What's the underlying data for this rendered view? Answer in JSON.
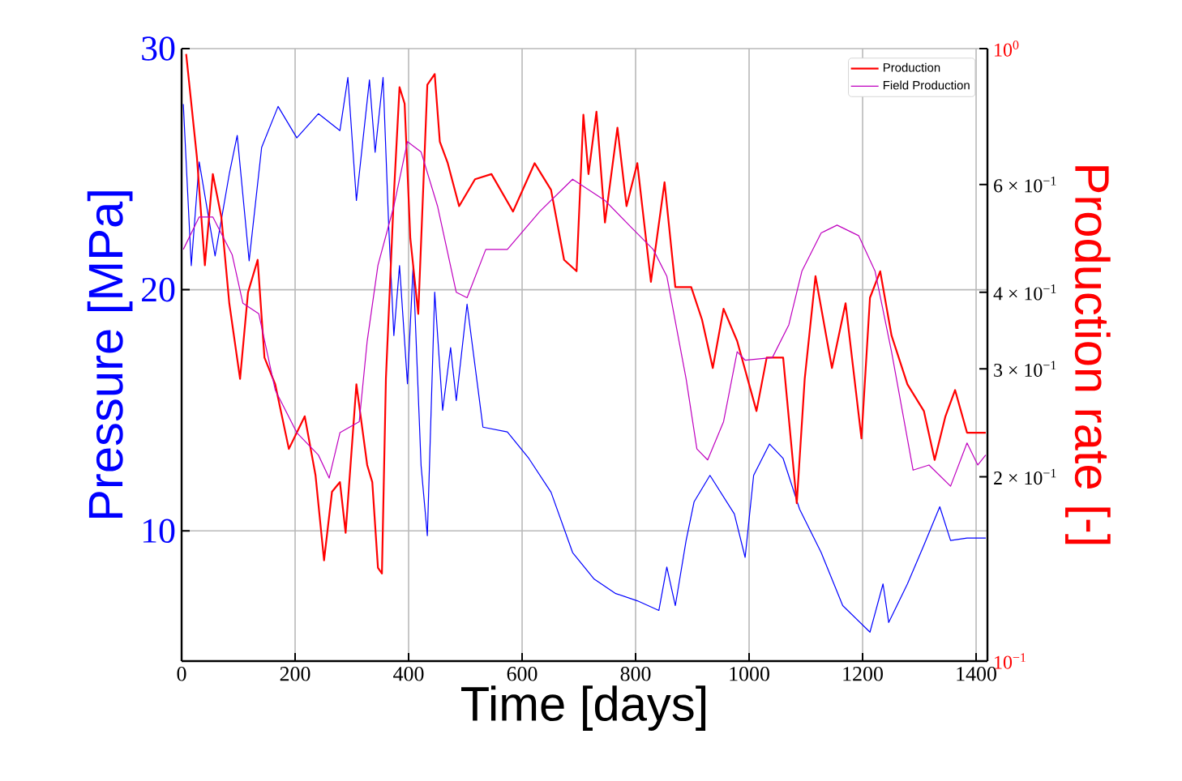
{
  "chart_data": {
    "type": "line",
    "xlabel": "Time [days]",
    "ylabel": "Pressure [MPa]",
    "y2label": "Production rate [-]",
    "xlim": [
      0,
      1420
    ],
    "ylim": [
      4.6,
      30
    ],
    "y2lim": [
      0.1,
      1
    ],
    "xticks": [
      0,
      200,
      400,
      600,
      800,
      1000,
      1200,
      1400
    ],
    "yticks": [
      10,
      20,
      30
    ],
    "y2ticks": [
      {
        "value": 0.1,
        "label": "10$^{−1}$"
      },
      {
        "value": 0.2,
        "label": "2 × 10$^{−1}$"
      },
      {
        "value": 0.3,
        "label": "3 × 10$^{−1}$"
      },
      {
        "value": 0.4,
        "label": "4 × 10$^{−1}$"
      },
      {
        "value": 0.6,
        "label": "6 × 10$^{−1}$"
      },
      {
        "value": 1,
        "label": "10$^{0}$"
      }
    ],
    "log": "y2",
    "grid": true,
    "legend": "top right",
    "marker": "none",
    "line_style": "solid",
    "series": [
      {
        "color": "#0000ff",
        "x": [
          3,
          17,
          31,
          59,
          84,
          98,
          119,
          141,
          170,
          203,
          241,
          279,
          293,
          308,
          331,
          341,
          355,
          365,
          374,
          384,
          398,
          408,
          422,
          433,
          446,
          460,
          474,
          484,
          503,
          531,
          574,
          612,
          651,
          689,
          727,
          765,
          803,
          841,
          855,
          870,
          889,
          903,
          931,
          974,
          993,
          1008,
          1036,
          1060,
          1089,
          1127,
          1165,
          1213,
          1236,
          1246,
          1279,
          1308,
          1336,
          1355,
          1384,
          1417
        ],
        "values": [
          27.7,
          21.0,
          25.3,
          21.4,
          24.8,
          26.4,
          21.2,
          25.9,
          27.6,
          26.3,
          27.3,
          26.6,
          28.8,
          23.7,
          28.7,
          25.7,
          28.8,
          22.6,
          18.1,
          21.0,
          16.1,
          21.0,
          12.7,
          9.8,
          19.9,
          15.0,
          17.6,
          15.4,
          19.4,
          14.3,
          14.1,
          13.0,
          11.6,
          9.1,
          8.0,
          7.4,
          7.1,
          6.7,
          8.5,
          6.9,
          9.6,
          11.2,
          12.3,
          10.7,
          8.9,
          12.3,
          13.6,
          13.0,
          10.9,
          9.1,
          6.9,
          5.8,
          7.8,
          6.2,
          7.8,
          9.4,
          11.0,
          9.6,
          9.7,
          9.7
        ]
      },
      {
        "name": "Production",
        "axis": "y2",
        "color": "#ff0000",
        "x": [
          8,
          27,
          41,
          55,
          70,
          84,
          103,
          117,
          134,
          146,
          165,
          189,
          217,
          236,
          251,
          265,
          279,
          289,
          308,
          327,
          336,
          346,
          353,
          360,
          374,
          384,
          393,
          403,
          417,
          433,
          446,
          455,
          469,
          489,
          517,
          546,
          584,
          622,
          651,
          674,
          696,
          708,
          717,
          731,
          746,
          768,
          784,
          803,
          827,
          851,
          870,
          898,
          917,
          936,
          955,
          979,
          1013,
          1031,
          1060,
          1084,
          1098,
          1117,
          1146,
          1170,
          1198,
          1213,
          1231,
          1251,
          1279,
          1308,
          1327,
          1346,
          1363,
          1384,
          1417
        ],
        "values": [
          0.98,
          0.664,
          0.443,
          0.624,
          0.531,
          0.384,
          0.289,
          0.4,
          0.452,
          0.313,
          0.283,
          0.222,
          0.251,
          0.201,
          0.146,
          0.189,
          0.196,
          0.162,
          0.283,
          0.209,
          0.196,
          0.142,
          0.139,
          0.289,
          0.576,
          0.865,
          0.813,
          0.49,
          0.369,
          0.873,
          0.909,
          0.705,
          0.65,
          0.553,
          0.612,
          0.624,
          0.542,
          0.65,
          0.588,
          0.452,
          0.433,
          0.78,
          0.624,
          0.789,
          0.52,
          0.743,
          0.553,
          0.65,
          0.416,
          0.605,
          0.408,
          0.408,
          0.361,
          0.301,
          0.376,
          0.333,
          0.256,
          0.313,
          0.313,
          0.181,
          0.289,
          0.425,
          0.301,
          0.384,
          0.231,
          0.392,
          0.433,
          0.34,
          0.283,
          0.256,
          0.213,
          0.251,
          0.277,
          0.236,
          0.236
        ]
      },
      {
        "name": "Field Production",
        "axis": "y2",
        "color": "#bf00bf",
        "x": [
          3,
          31,
          55,
          89,
          108,
          136,
          165,
          203,
          241,
          260,
          279,
          313,
          327,
          346,
          374,
          398,
          422,
          451,
          484,
          503,
          536,
          574,
          631,
          689,
          746,
          793,
          831,
          855,
          889,
          908,
          927,
          955,
          979,
          993,
          1041,
          1070,
          1093,
          1127,
          1155,
          1193,
          1222,
          1251,
          1289,
          1317,
          1355,
          1384,
          1403,
          1417
        ],
        "values": [
          0.47,
          0.531,
          0.531,
          0.461,
          0.384,
          0.369,
          0.277,
          0.236,
          0.217,
          0.199,
          0.236,
          0.246,
          0.333,
          0.443,
          0.553,
          0.705,
          0.678,
          0.553,
          0.4,
          0.392,
          0.47,
          0.47,
          0.542,
          0.612,
          0.565,
          0.51,
          0.47,
          0.425,
          0.289,
          0.222,
          0.213,
          0.246,
          0.32,
          0.31,
          0.313,
          0.354,
          0.433,
          0.5,
          0.515,
          0.495,
          0.433,
          0.32,
          0.205,
          0.209,
          0.193,
          0.227,
          0.209,
          0.217
        ]
      }
    ]
  }
}
